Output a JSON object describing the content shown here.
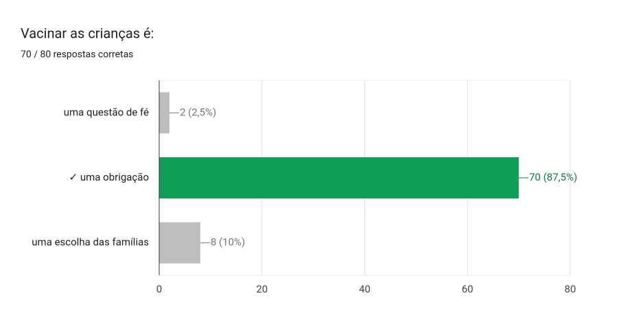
{
  "chart_data": {
    "type": "bar",
    "orientation": "horizontal",
    "title": "Vacinar as crianças é:",
    "subtitle": "70 / 80 respostas corretas",
    "categories": [
      "uma questão de fé",
      "✓ uma obrigação",
      "uma escolha das famílias"
    ],
    "values": [
      2,
      70,
      8
    ],
    "value_labels": [
      "2 (2,5%)",
      "70 (87,5%)",
      "8 (10%)"
    ],
    "colors": [
      "#bdbdbd",
      "#0f9d58",
      "#bdbdbd"
    ],
    "value_label_colors": [
      "#757575",
      "#0b7a45",
      "#757575"
    ],
    "xlim": [
      0,
      80
    ],
    "xticks": [
      0,
      20,
      40,
      60,
      80
    ],
    "grid": true
  }
}
